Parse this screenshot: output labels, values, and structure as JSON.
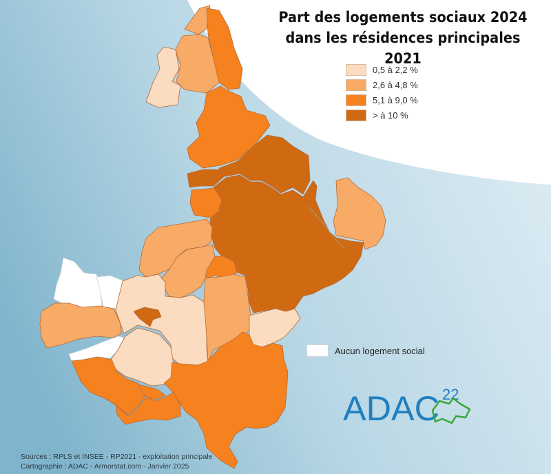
{
  "title": {
    "line1": "Part des logements sociaux 2024",
    "line2": "dans les résidences principales 2021"
  },
  "legend": {
    "classes": [
      {
        "label": "0,5 à 2,2 %",
        "color": "#fbdcc0"
      },
      {
        "label": "2,6 à 4,8 %",
        "color": "#f8ab66"
      },
      {
        "label": "5,1 à 9,0 %",
        "color": "#f5821f"
      },
      {
        "label": "> à 10 %",
        "color": "#cf6a12"
      }
    ],
    "none": {
      "label": "Aucun logement social",
      "color": "#ffffff"
    }
  },
  "colors": {
    "sea_light": "#dcebf3",
    "sea_dark": "#7fb4cc",
    "border": "#b56a3a",
    "logo_blue": "#1f7fc0",
    "logo_green": "#3aa63a"
  },
  "logo": {
    "text": "ADAC",
    "number": "22"
  },
  "sources": {
    "line1": "Sources : RPLS et INSEE - RP2021 - exploitation principale",
    "line2": "Cartographie : ADAC - Armorstat.com - Janvier 2025"
  }
}
